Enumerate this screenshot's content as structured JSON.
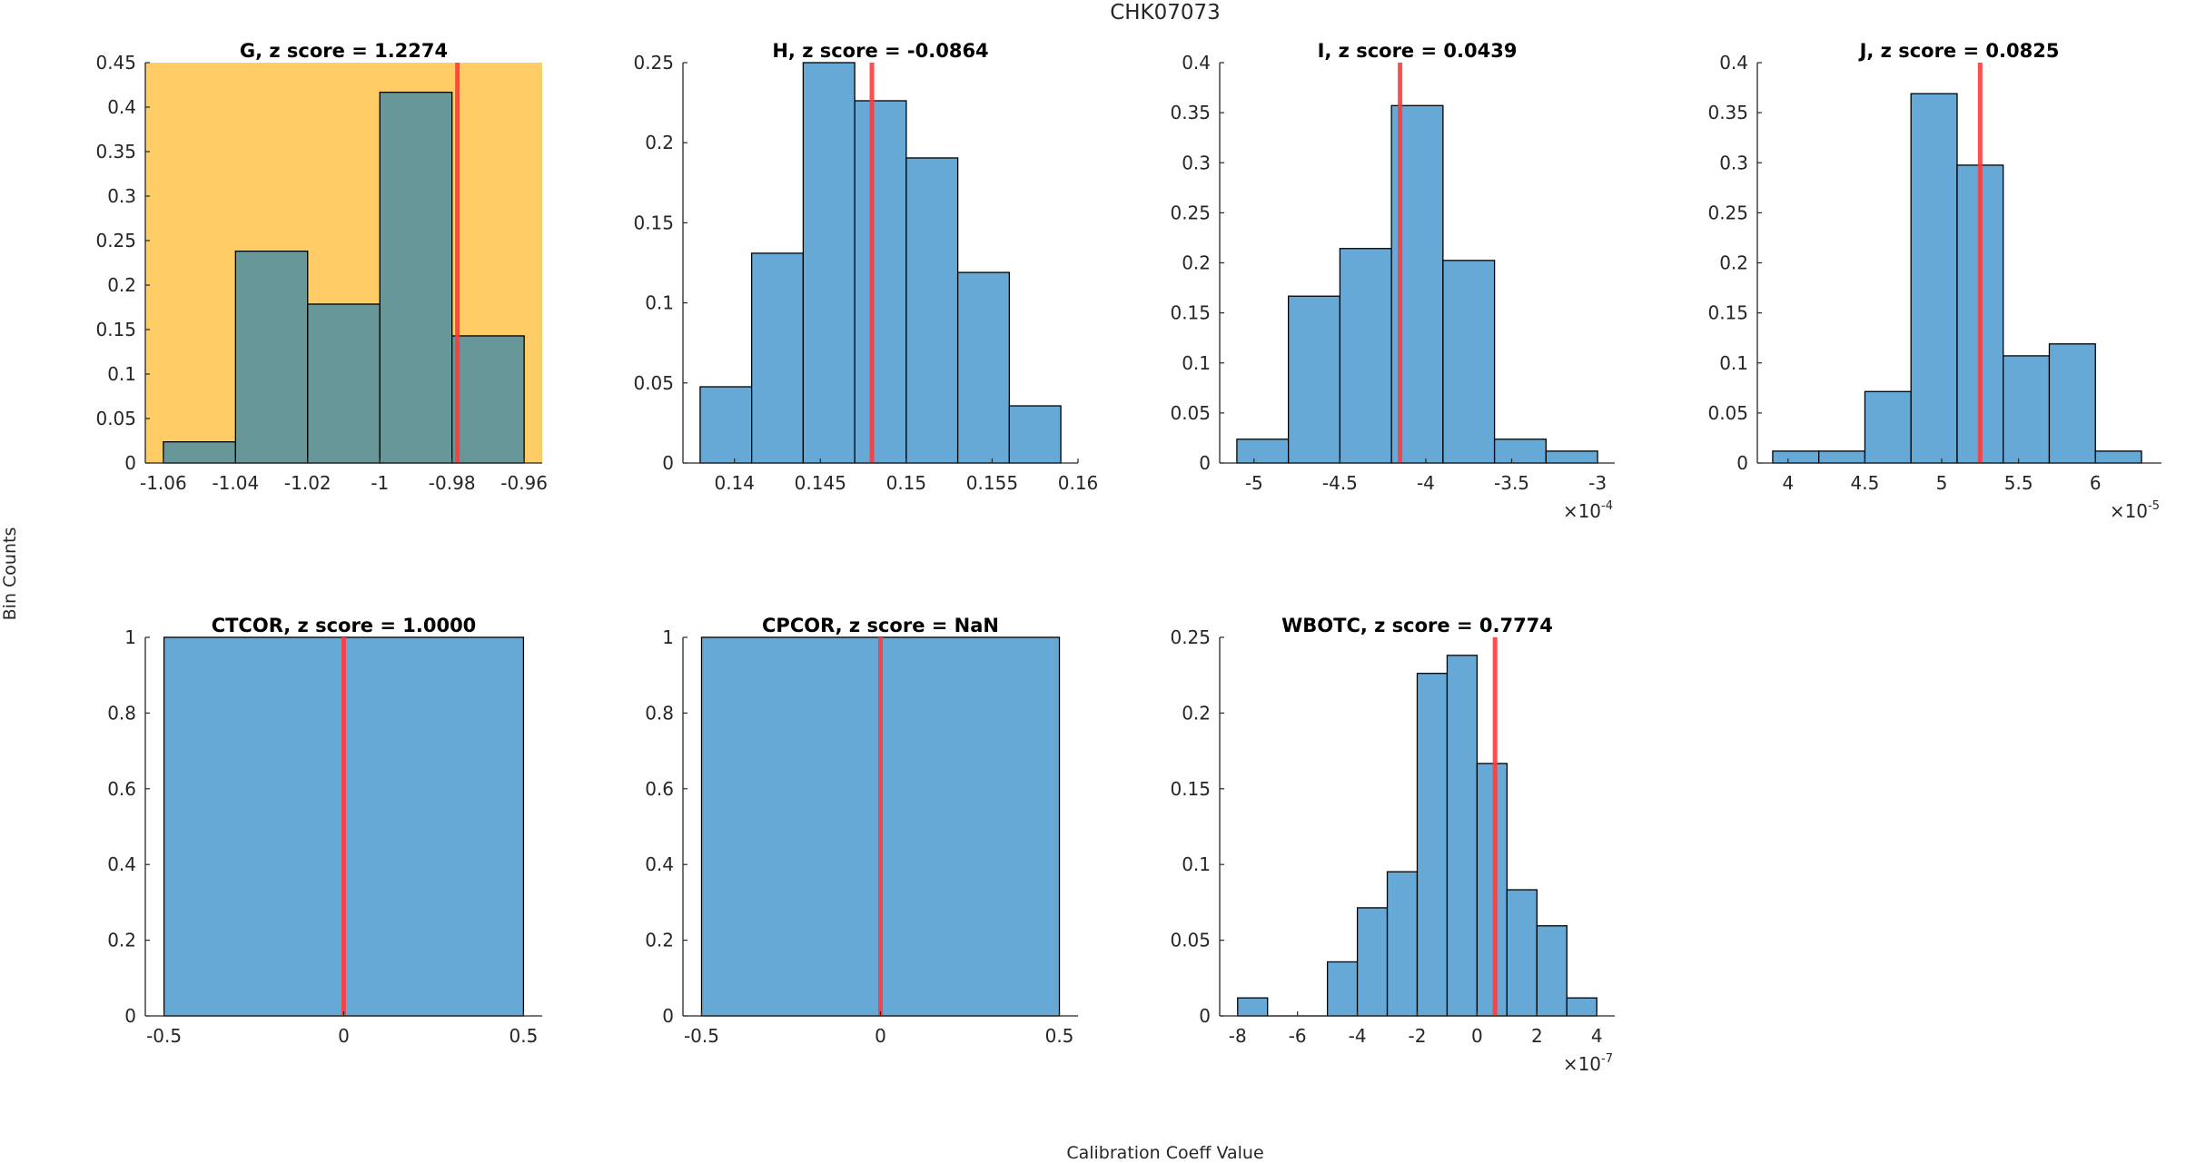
{
  "figure": {
    "suptitle": "CHK07073",
    "xlabel": "Calibration Coeff Value",
    "ylabel": "Bin Counts"
  },
  "colors": {
    "bar": "#67a9d6",
    "bar_flagged": "#679799",
    "flag_background": "#ffcc66",
    "marker_line": "#ff3b3b",
    "axis": "#262626"
  },
  "chart_data": [
    {
      "type": "bar",
      "title": "G, z score = 1.2274",
      "flagged": true,
      "edges": [
        -1.06,
        -1.04,
        -1.02,
        -1.0,
        -0.98,
        -0.96
      ],
      "values": [
        0.0238,
        0.2381,
        0.1786,
        0.4167,
        0.1429
      ],
      "marker": -0.9785,
      "xlim": [
        -1.065,
        -0.955
      ],
      "ylim": [
        0,
        0.45
      ],
      "xticks": [
        -1.06,
        -1.04,
        -1.02,
        -1,
        -0.98,
        -0.96
      ],
      "xticklabels": [
        "-1.06",
        "-1.04",
        "-1.02",
        "-1",
        "-0.98",
        "-0.96"
      ],
      "yticks": [
        0,
        0.05,
        0.1,
        0.15,
        0.2,
        0.25,
        0.3,
        0.35,
        0.4,
        0.45
      ],
      "yticklabels": [
        "0",
        "0.05",
        "0.1",
        "0.15",
        "0.2",
        "0.25",
        "0.3",
        "0.35",
        "0.4",
        "0.45"
      ],
      "exponent": null
    },
    {
      "type": "bar",
      "title": "H, z score = -0.0864",
      "flagged": false,
      "edges": [
        0.138,
        0.141,
        0.144,
        0.147,
        0.15,
        0.153,
        0.156,
        0.159
      ],
      "values": [
        0.0476,
        0.131,
        0.25,
        0.2262,
        0.1905,
        0.119,
        0.0357
      ],
      "marker": 0.148,
      "xlim": [
        0.137,
        0.16
      ],
      "ylim": [
        0,
        0.25
      ],
      "xticks": [
        0.14,
        0.145,
        0.15,
        0.155,
        0.16
      ],
      "xticklabels": [
        "0.14",
        "0.145",
        "0.15",
        "0.155",
        "0.16"
      ],
      "yticks": [
        0,
        0.05,
        0.1,
        0.15,
        0.2,
        0.25
      ],
      "yticklabels": [
        "0",
        "0.05",
        "0.1",
        "0.15",
        "0.2",
        "0.25"
      ],
      "exponent": null
    },
    {
      "type": "bar",
      "title": "I, z score = 0.0439",
      "flagged": false,
      "edges": [
        -5.1,
        -4.8,
        -4.5,
        -4.2,
        -3.9,
        -3.6,
        -3.3,
        -3.0
      ],
      "values": [
        0.0238,
        0.1667,
        0.2143,
        0.3571,
        0.2024,
        0.0238,
        0.0119
      ],
      "marker": -4.15,
      "xlim": [
        -5.2,
        -2.9
      ],
      "ylim": [
        0,
        0.4
      ],
      "xticks": [
        -5,
        -4.5,
        -4,
        -3.5,
        -3
      ],
      "xticklabels": [
        "-5",
        "-4.5",
        "-4",
        "-3.5",
        "-3"
      ],
      "yticks": [
        0,
        0.05,
        0.1,
        0.15,
        0.2,
        0.25,
        0.3,
        0.35,
        0.4
      ],
      "yticklabels": [
        "0",
        "0.05",
        "0.1",
        "0.15",
        "0.2",
        "0.25",
        "0.3",
        "0.35",
        "0.4"
      ],
      "exponent": {
        "base": "×10",
        "power": "-4"
      }
    },
    {
      "type": "bar",
      "title": "J, z score = 0.0825",
      "flagged": false,
      "edges": [
        3.9,
        4.2,
        4.5,
        4.8,
        5.1,
        5.4,
        5.7,
        6.0,
        6.3
      ],
      "values": [
        0.0119,
        0.0119,
        0.0714,
        0.369,
        0.2976,
        0.1071,
        0.119,
        0.0119
      ],
      "marker": 5.25,
      "xlim": [
        3.8,
        6.43
      ],
      "ylim": [
        0,
        0.4
      ],
      "xticks": [
        4,
        4.5,
        5,
        5.5,
        6
      ],
      "xticklabels": [
        "4",
        "4.5",
        "5",
        "5.5",
        "6"
      ],
      "yticks": [
        0,
        0.05,
        0.1,
        0.15,
        0.2,
        0.25,
        0.3,
        0.35,
        0.4
      ],
      "yticklabels": [
        "0",
        "0.05",
        "0.1",
        "0.15",
        "0.2",
        "0.25",
        "0.3",
        "0.35",
        "0.4"
      ],
      "exponent": {
        "base": "×10",
        "power": "-5"
      }
    },
    {
      "type": "bar",
      "title": "CTCOR, z score = 1.0000",
      "flagged": false,
      "edges": [
        -0.5,
        0.5
      ],
      "values": [
        1
      ],
      "marker": 0,
      "xlim": [
        -0.552,
        0.552
      ],
      "ylim": [
        0,
        1
      ],
      "xticks": [
        -0.5,
        0,
        0.5
      ],
      "xticklabels": [
        "-0.5",
        "0",
        "0.5"
      ],
      "yticks": [
        0,
        0.2,
        0.4,
        0.6,
        0.8,
        1
      ],
      "yticklabels": [
        "0",
        "0.2",
        "0.4",
        "0.6",
        "0.8",
        "1"
      ],
      "exponent": null
    },
    {
      "type": "bar",
      "title": "CPCOR, z score = NaN",
      "flagged": false,
      "edges": [
        -0.5,
        0.5
      ],
      "values": [
        1
      ],
      "marker": 0,
      "xlim": [
        -0.552,
        0.552
      ],
      "ylim": [
        0,
        1
      ],
      "xticks": [
        -0.5,
        0,
        0.5
      ],
      "xticklabels": [
        "-0.5",
        "0",
        "0.5"
      ],
      "yticks": [
        0,
        0.2,
        0.4,
        0.6,
        0.8,
        1
      ],
      "yticklabels": [
        "0",
        "0.2",
        "0.4",
        "0.6",
        "0.8",
        "1"
      ],
      "exponent": null
    },
    {
      "type": "bar",
      "title": "WBOTC, z score = 0.7774",
      "flagged": false,
      "edges": [
        -8,
        -7,
        -6,
        -5,
        -4,
        -3,
        -2,
        -1,
        0,
        1,
        2,
        3,
        4
      ],
      "values": [
        0.0119,
        0,
        0,
        0.0357,
        0.0714,
        0.0952,
        0.2262,
        0.2381,
        0.1667,
        0.0833,
        0.0595,
        0.0119
      ],
      "marker": 0.6,
      "xlim": [
        -8.6,
        4.6
      ],
      "ylim": [
        0,
        0.25
      ],
      "xticks": [
        -8,
        -6,
        -4,
        -2,
        0,
        2,
        4
      ],
      "xticklabels": [
        "-8",
        "-6",
        "-4",
        "-2",
        "0",
        "2",
        "4"
      ],
      "yticks": [
        0,
        0.05,
        0.1,
        0.15,
        0.2,
        0.25
      ],
      "yticklabels": [
        "0",
        "0.05",
        "0.1",
        "0.15",
        "0.2",
        "0.25"
      ],
      "exponent": {
        "base": "×10",
        "power": "-7"
      }
    }
  ]
}
